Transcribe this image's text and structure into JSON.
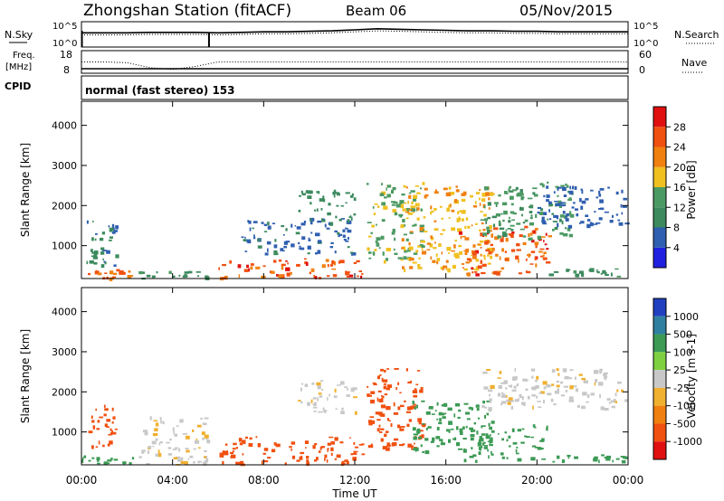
{
  "header": {
    "station": "Zhongshan Station (fitACF)",
    "beam": "Beam 06",
    "date": "05/Nov/2015"
  },
  "top_panels": {
    "nsky_label": "N.Sky",
    "nsearch_label": "N.Search",
    "noise_tick_high": "10^5",
    "noise_tick_low": "10^0",
    "freq_label_line1": "Freq.",
    "freq_label_line2": "[MHz]",
    "freq_tick_high": "18",
    "freq_tick_low": "8",
    "nave_label": "Nave",
    "nave_tick_high": "60",
    "nave_tick_low": "0",
    "cpid_label": "CPID",
    "cpid_text": "normal (fast stereo)  153"
  },
  "colors": {
    "power_scale": [
      "#2020e0",
      "#2f5fb0",
      "#3c8a5e",
      "#4c9a63",
      "#f0c020",
      "#f08010",
      "#f05010",
      "#e01010"
    ],
    "velocity_scale": [
      "#e01010",
      "#f05010",
      "#f08010",
      "#f0b030",
      "#c8c8c8",
      "#7fd040",
      "#3c9a55",
      "#2f7fa0",
      "#2040c0"
    ],
    "stripe_green": "#2e8b57"
  },
  "chart_data": [
    {
      "type": "heatmap",
      "panel": "power",
      "ylabel": "Slant Range [km]",
      "ylim": [
        180,
        4600
      ],
      "yticks": [
        "1000",
        "2000",
        "3000",
        "4000"
      ],
      "x_range_hours": [
        0,
        24
      ],
      "colorbar_label": "Power [dB]",
      "colorbar_ticks": [
        "4",
        "8",
        "12",
        "16",
        "20",
        "24",
        "28"
      ],
      "colorbar_range": [
        0,
        30
      ],
      "regions": [
        {
          "t0": 0.0,
          "t1": 2.5,
          "r0": 200,
          "r1": 420,
          "v": 22
        },
        {
          "t0": 0.1,
          "t1": 1.5,
          "r0": 500,
          "r1": 1800,
          "v": 8
        },
        {
          "t0": 2.5,
          "t1": 5.5,
          "r0": 200,
          "r1": 380,
          "v": 10
        },
        {
          "t0": 6.0,
          "t1": 12.3,
          "r0": 200,
          "r1": 700,
          "v": 24
        },
        {
          "t0": 7.0,
          "t1": 12.0,
          "r0": 800,
          "r1": 1700,
          "v": 7
        },
        {
          "t0": 9.5,
          "t1": 12.0,
          "r0": 1600,
          "r1": 2400,
          "v": 9
        },
        {
          "t0": 12.5,
          "t1": 15.0,
          "r0": 600,
          "r1": 2600,
          "v": 14
        },
        {
          "t0": 14.0,
          "t1": 18.0,
          "r0": 400,
          "r1": 2500,
          "v": 18
        },
        {
          "t0": 16.5,
          "t1": 20.5,
          "r0": 300,
          "r1": 1500,
          "v": 24
        },
        {
          "t0": 17.5,
          "t1": 21.5,
          "r0": 1200,
          "r1": 2600,
          "v": 12
        },
        {
          "t0": 20.0,
          "t1": 23.9,
          "r0": 1500,
          "r1": 2500,
          "v": 6
        },
        {
          "t0": 20.5,
          "t1": 23.9,
          "r0": 250,
          "r1": 450,
          "v": 10
        }
      ]
    },
    {
      "type": "heatmap",
      "panel": "velocity",
      "ylabel": "Slant Range [km]",
      "ylim": [
        180,
        4600
      ],
      "yticks": [
        "1000",
        "2000",
        "3000",
        "4000"
      ],
      "x_range_hours": [
        0,
        24
      ],
      "xlabel": "Time UT",
      "xticks": [
        "00:00",
        "04:00",
        "08:00",
        "12:00",
        "16:00",
        "20:00",
        "00:00"
      ],
      "colorbar_label": "Velocity [m s-1]",
      "colorbar_ticks": [
        "1000",
        "500",
        "100",
        "25",
        "-25",
        "-100",
        "-500",
        "-1000"
      ],
      "colorbar_range": [
        -1000,
        1000
      ],
      "regions": [
        {
          "t0": 0.0,
          "t1": 2.5,
          "r0": 200,
          "r1": 420,
          "v": 300
        },
        {
          "t0": 0.2,
          "t1": 1.5,
          "r0": 600,
          "r1": 1700,
          "v": -200
        },
        {
          "t0": 2.5,
          "t1": 5.5,
          "r0": 200,
          "r1": 1400,
          "v": 0
        },
        {
          "t0": 6.0,
          "t1": 12.3,
          "r0": 200,
          "r1": 900,
          "v": -300
        },
        {
          "t0": 9.5,
          "t1": 12.0,
          "r0": 1500,
          "r1": 2300,
          "v": 0
        },
        {
          "t0": 12.5,
          "t1": 15.0,
          "r0": 600,
          "r1": 2600,
          "v": -150
        },
        {
          "t0": 14.5,
          "t1": 18.0,
          "r0": 500,
          "r1": 1800,
          "v": 120
        },
        {
          "t0": 16.5,
          "t1": 20.5,
          "r0": 300,
          "r1": 1200,
          "v": 150
        },
        {
          "t0": 17.5,
          "t1": 23.9,
          "r0": 1600,
          "r1": 2600,
          "v": 0
        },
        {
          "t0": 20.5,
          "t1": 23.9,
          "r0": 250,
          "r1": 450,
          "v": 200
        }
      ]
    },
    {
      "type": "line",
      "panel": "noise",
      "series": [
        {
          "name": "N.Sky",
          "values": [
            2.8,
            2.8,
            2.8,
            2.9,
            2.9,
            2.9,
            2.8,
            2.9,
            3.0,
            3.0,
            3.1,
            3.2,
            3.4,
            3.6,
            3.5,
            3.4,
            3.3,
            3.2,
            3.2,
            3.1,
            3.1,
            3.0,
            3.0,
            3.0,
            3.0
          ]
        },
        {
          "name": "N.Search",
          "values": [
            2.4,
            2.4,
            2.4,
            2.5,
            2.5,
            2.5,
            2.4,
            2.5,
            2.6,
            2.6,
            2.7,
            2.8,
            3.0,
            3.2,
            3.1,
            3.0,
            2.9,
            2.8,
            2.8,
            2.7,
            2.7,
            2.6,
            2.6,
            2.6,
            2.6
          ]
        }
      ],
      "x_range_hours": [
        0,
        24
      ],
      "ylim": [
        0,
        5
      ]
    },
    {
      "type": "line",
      "panel": "freq_nave",
      "series": [
        {
          "name": "Freq.",
          "values": [
            10,
            10,
            10,
            10,
            10,
            10,
            10,
            10,
            10,
            10,
            10,
            10,
            10,
            10,
            10,
            10,
            10,
            10,
            10,
            10,
            10,
            10,
            10,
            10,
            10
          ]
        },
        {
          "name": "Nave",
          "values": [
            30,
            30,
            28,
            15,
            10,
            18,
            30,
            30,
            30,
            30,
            30,
            30,
            30,
            30,
            30,
            30,
            30,
            30,
            30,
            30,
            30,
            30,
            30,
            30,
            30
          ]
        }
      ],
      "x_range_hours": [
        0,
        24
      ],
      "freq_ylim": [
        8,
        18
      ],
      "nave_ylim": [
        0,
        60
      ]
    }
  ]
}
